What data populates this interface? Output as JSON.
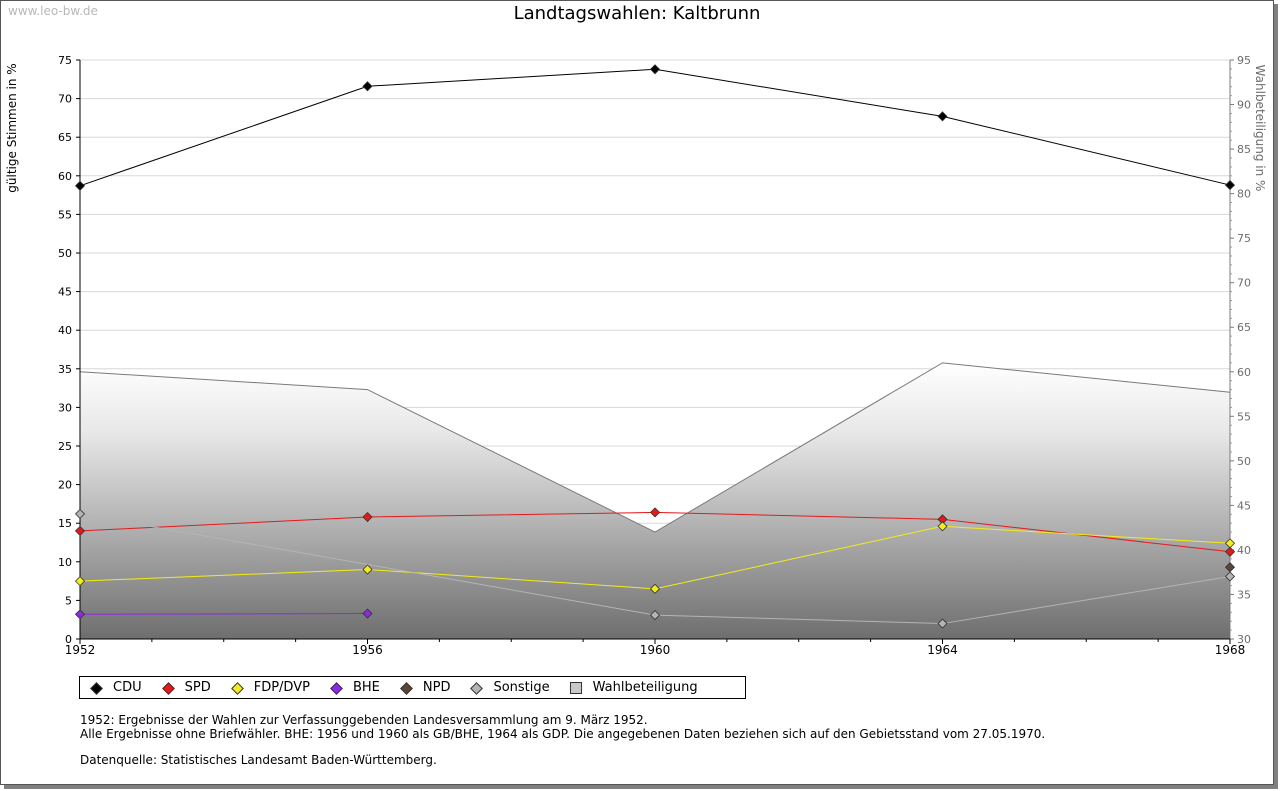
{
  "watermark": "www.leo-bw.de",
  "chart_data": {
    "type": "line",
    "title": "Landtagswahlen: Kaltbrunn",
    "ylabel": "gültige Stimmen in %",
    "y2label": "Wahlbeteiligung in %",
    "x": [
      1952,
      1956,
      1960,
      1964,
      1968
    ],
    "ylim": [
      0,
      75
    ],
    "y_ticks": [
      0,
      5,
      10,
      15,
      20,
      25,
      30,
      35,
      40,
      45,
      50,
      55,
      60,
      65,
      70,
      75
    ],
    "y2lim": [
      30,
      95
    ],
    "y2_ticks": [
      30,
      35,
      40,
      45,
      50,
      55,
      60,
      65,
      70,
      75,
      80,
      85,
      90,
      95
    ],
    "grid": true,
    "legend_position": "bottom",
    "series": [
      {
        "name": "CDU",
        "color": "#000000",
        "values": [
          58.7,
          71.6,
          73.8,
          67.7,
          58.8
        ]
      },
      {
        "name": "SPD",
        "color": "#e31a1c",
        "values": [
          14.0,
          15.8,
          16.4,
          15.5,
          11.3
        ]
      },
      {
        "name": "FDP/DVP",
        "color": "#f2ec1b",
        "values": [
          7.5,
          9.0,
          6.5,
          14.6,
          12.4
        ]
      },
      {
        "name": "BHE",
        "color": "#8a2be2",
        "values": [
          3.2,
          3.3,
          null,
          null,
          null
        ]
      },
      {
        "name": "NPD",
        "color": "#5b4636",
        "values": [
          null,
          null,
          null,
          null,
          9.3
        ]
      },
      {
        "name": "Sonstige",
        "color": "#b4b4b4",
        "values": [
          16.2,
          null,
          3.1,
          2.0,
          8.1
        ]
      },
      {
        "name": "Wahlbeteiligung",
        "color": "#c8c8c8",
        "axis": "right",
        "type": "area",
        "values": [
          60.0,
          58.0,
          42.0,
          61.0,
          57.7
        ]
      }
    ]
  },
  "notes": {
    "line1": "1952: Ergebnisse der Wahlen zur Verfassunggebenden Landesversammlung am 9. März 1952.",
    "line2": "Alle Ergebnisse ohne Briefwähler. BHE: 1956 und 1960 als GB/BHE, 1964 als GDP. Die angegebenen Daten beziehen sich auf den Gebietsstand vom 27.05.1970.",
    "line3": "Datenquelle: Statistisches Landesamt Baden-Württemberg."
  }
}
